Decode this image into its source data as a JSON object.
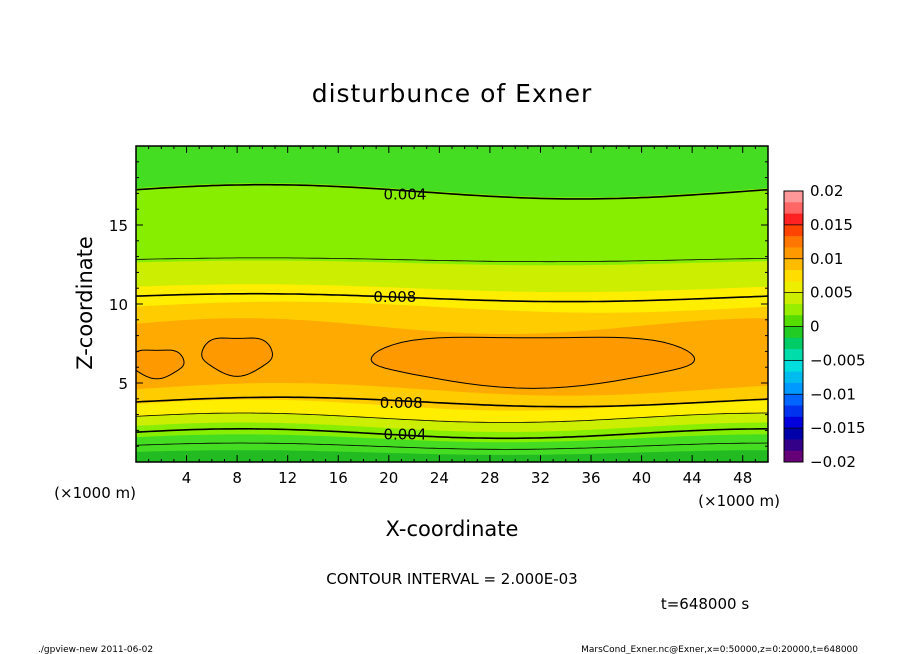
{
  "chart_data": {
    "type": "heatmap",
    "title": "disturbunce of Exner",
    "xlabel": "X-coordinate",
    "ylabel": "Z-coordinate",
    "x_unit": "(×1000 m)",
    "y_unit": "(×1000 m)",
    "xlim": [
      0,
      50
    ],
    "ylim": [
      0,
      20
    ],
    "x_ticks": [
      4,
      8,
      12,
      16,
      20,
      24,
      28,
      32,
      36,
      40,
      44,
      48
    ],
    "y_ticks": [
      5,
      10,
      15
    ],
    "colorbar_levels": [
      -0.02,
      -0.015,
      -0.01,
      -0.005,
      0,
      0.005,
      0.01,
      0.015,
      0.02
    ],
    "colorbar_labels": [
      "0.02",
      "0.015",
      "0.01",
      "0.005",
      "0",
      "−0.005",
      "−0.01",
      "−0.015",
      "−0.02"
    ],
    "contour_labels": [
      {
        "text": "0.004",
        "x": 17.8,
        "z": 17.0
      },
      {
        "text": "0.008",
        "x": 17.0,
        "z": 10.5
      },
      {
        "text": "0.008",
        "x": 17.5,
        "z": 3.8
      },
      {
        "text": "0.004",
        "x": 17.8,
        "z": 1.8
      }
    ],
    "contour_interval_text": "CONTOUR INTERVAL = 2.000E-03",
    "time_text": "t=648000 s"
  },
  "footer": {
    "left": "./gpview-new   2011-06-02",
    "right": "MarsCond_Exner.nc@Exner,x=0:50000,z=0:20000,t=648000"
  },
  "colors": {
    "band_0": "#22bb22",
    "band_1": "#44dd22",
    "band_2": "#88ee00",
    "band_3": "#ccee00",
    "band_4": "#ffee00",
    "band_5": "#ffcc00",
    "band_6": "#ffaa00",
    "band_7": "#ff9900"
  }
}
